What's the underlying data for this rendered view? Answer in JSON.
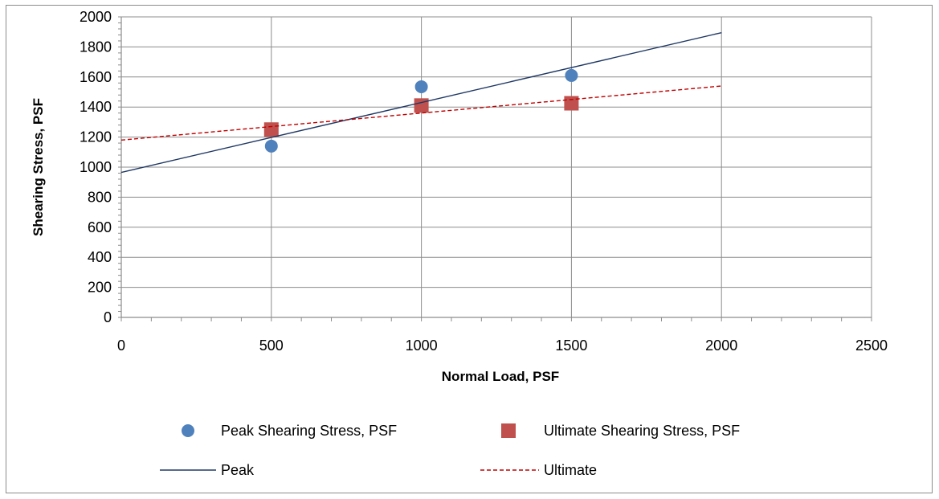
{
  "chart_data": {
    "type": "scatter",
    "xlabel": "Normal Load, PSF",
    "ylabel": "Shearing Stress, PSF",
    "xlim": [
      0,
      2500
    ],
    "ylim": [
      0,
      2000
    ],
    "x_ticks": [
      0,
      500,
      1000,
      1500,
      2000,
      2500
    ],
    "y_ticks": [
      0,
      200,
      400,
      600,
      800,
      1000,
      1200,
      1400,
      1600,
      1800,
      2000
    ],
    "grid": true,
    "legend_position": "bottom",
    "series": [
      {
        "name": "Peak Shearing Stress, PSF",
        "kind": "scatter",
        "marker": "circle",
        "color": "#4f81bd",
        "x": [
          500,
          1000,
          1500
        ],
        "y": [
          1140,
          1535,
          1610
        ]
      },
      {
        "name": "Ultimate Shearing Stress, PSF",
        "kind": "scatter",
        "marker": "square",
        "color": "#c0504d",
        "x": [
          500,
          1000,
          1500
        ],
        "y": [
          1250,
          1410,
          1425
        ]
      },
      {
        "name": "Peak",
        "kind": "line",
        "style": "solid",
        "color": "#1f3864",
        "x": [
          0,
          2000
        ],
        "y": [
          965,
          1895
        ]
      },
      {
        "name": "Ultimate",
        "kind": "line",
        "style": "dashed",
        "color": "#c00000",
        "x": [
          0,
          2000
        ],
        "y": [
          1180,
          1540
        ]
      }
    ]
  }
}
